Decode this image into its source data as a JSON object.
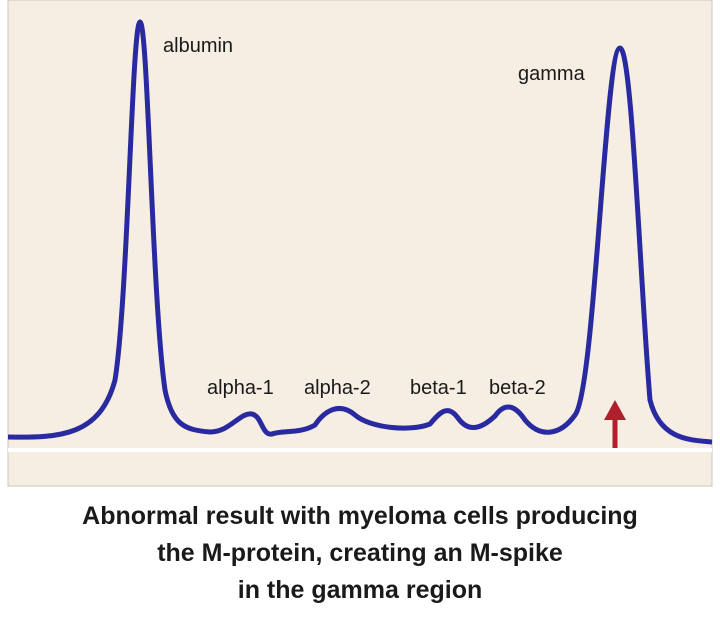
{
  "peaks": [
    {
      "label": "albumin"
    },
    {
      "label": "alpha-1"
    },
    {
      "label": "alpha-2"
    },
    {
      "label": "beta-1"
    },
    {
      "label": "beta-2"
    },
    {
      "label": "gamma"
    }
  ],
  "caption": [
    "Abnormal result with myeloma cells producing",
    "the M-protein, creating an M-spike",
    "in the gamma region"
  ]
}
